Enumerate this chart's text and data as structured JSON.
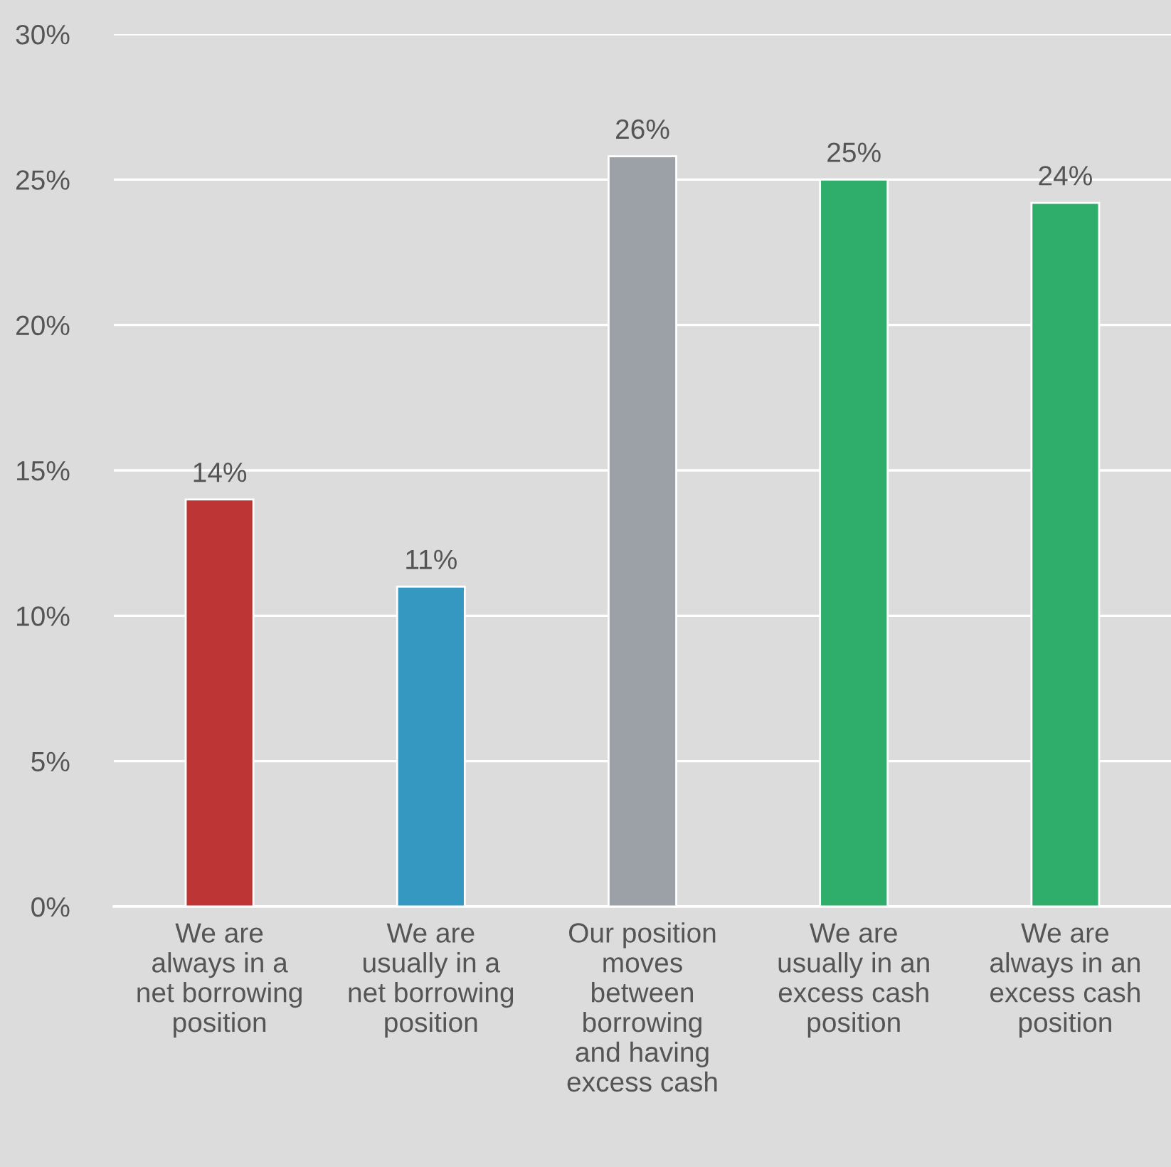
{
  "chart_data": {
    "type": "bar",
    "categories": [
      "We are\nalways in a\nnet borrowing\nposition",
      "We are\nusually in a\nnet borrowing\nposition",
      "Our position\nmoves\nbetween\nborrowing\nand having\nexcess cash",
      "We are\nusually in an\nexcess cash\nposition",
      "We are\nalways in an\nexcess cash\nposition"
    ],
    "values": [
      14,
      11,
      25.8,
      25,
      24.2
    ],
    "colors": [
      "#be3535",
      "#3598c0",
      "#9ca0a7",
      "#2fae6b",
      "#2fae6b"
    ],
    "value_labels": [
      "14%",
      "11%",
      "26%",
      "25%",
      "24%"
    ],
    "ylim": [
      0,
      30
    ],
    "yticks": [
      {
        "value": 0,
        "label": "0%"
      },
      {
        "value": 5,
        "label": "5%"
      },
      {
        "value": 10,
        "label": "10%"
      },
      {
        "value": 15,
        "label": "15%"
      },
      {
        "value": 20,
        "label": "20%"
      },
      {
        "value": 25,
        "label": "25%"
      },
      {
        "value": 30,
        "label": "30%"
      }
    ],
    "grid": "y"
  }
}
